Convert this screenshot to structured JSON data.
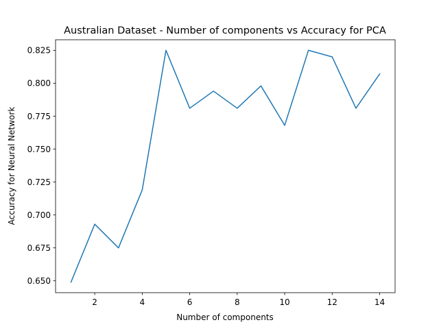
{
  "chart_data": {
    "type": "line",
    "title": "Australian Dataset - Number of components vs Accuracy for PCA",
    "xlabel": "Number of components",
    "ylabel": "Accuracy for Neural Network",
    "xlim": [
      0.35,
      14.65
    ],
    "ylim": [
      0.641,
      0.833
    ],
    "x_ticks": [
      2,
      4,
      6,
      8,
      10,
      12,
      14
    ],
    "x_tick_labels": [
      "2",
      "4",
      "6",
      "8",
      "10",
      "12",
      "14"
    ],
    "y_ticks": [
      0.65,
      0.675,
      0.7,
      0.725,
      0.75,
      0.775,
      0.8,
      0.825
    ],
    "y_tick_labels": [
      "0.650",
      "0.675",
      "0.700",
      "0.725",
      "0.750",
      "0.775",
      "0.800",
      "0.825"
    ],
    "grid": false,
    "series": [
      {
        "color": "#1f77b4",
        "x": [
          1,
          2,
          3,
          4,
          5,
          6,
          7,
          8,
          9,
          10,
          11,
          12,
          13,
          14
        ],
        "y": [
          0.649,
          0.693,
          0.675,
          0.719,
          0.825,
          0.781,
          0.794,
          0.781,
          0.798,
          0.768,
          0.825,
          0.82,
          0.781,
          0.807
        ]
      }
    ]
  }
}
